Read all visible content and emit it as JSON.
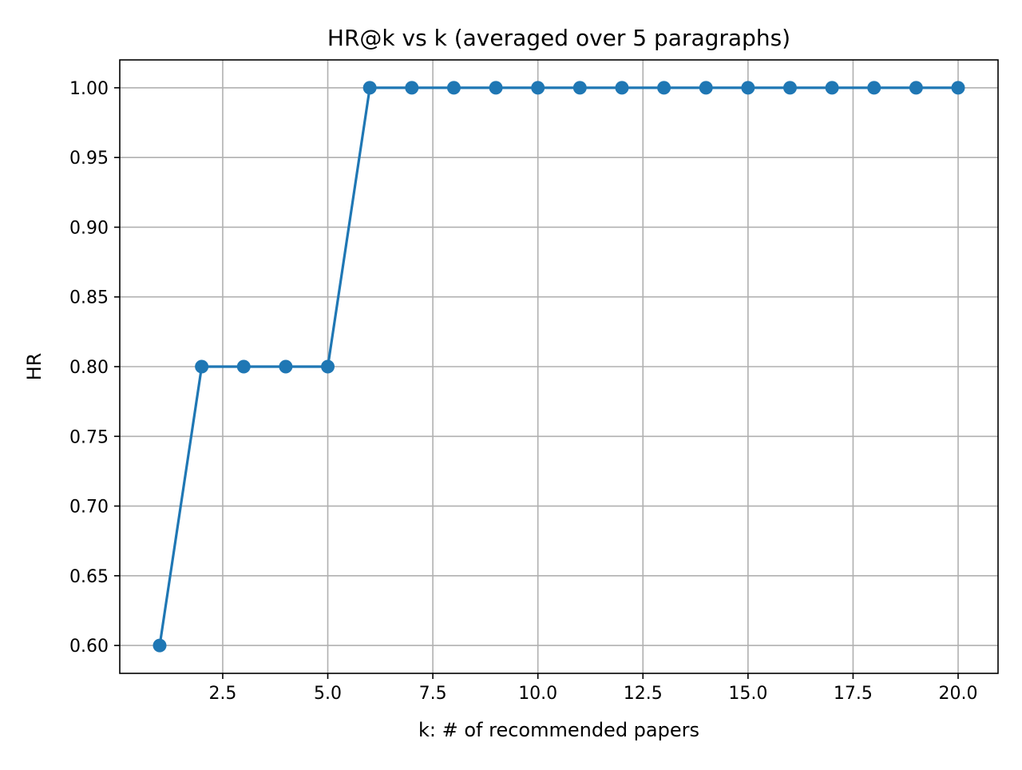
{
  "chart_data": {
    "type": "line",
    "title": "HR@k vs k  (averaged over 5 paragraphs)",
    "xlabel": "k: # of recommended papers",
    "ylabel": "HR",
    "xlim": [
      0.05,
      20.95
    ],
    "ylim": [
      0.58,
      1.02
    ],
    "xticks": [
      2.5,
      5.0,
      7.5,
      10.0,
      12.5,
      15.0,
      17.5,
      20.0
    ],
    "xtick_labels": [
      "2.5",
      "5.0",
      "7.5",
      "10.0",
      "12.5",
      "15.0",
      "17.5",
      "20.0"
    ],
    "yticks": [
      0.6,
      0.65,
      0.7,
      0.75,
      0.8,
      0.85,
      0.9,
      0.95,
      1.0
    ],
    "ytick_labels": [
      "0.60",
      "0.65",
      "0.70",
      "0.75",
      "0.80",
      "0.85",
      "0.90",
      "0.95",
      "1.00"
    ],
    "grid": true,
    "series": [
      {
        "color": "#1f77b4",
        "marker": "circle",
        "x": [
          1,
          2,
          3,
          4,
          5,
          6,
          7,
          8,
          9,
          10,
          11,
          12,
          13,
          14,
          15,
          16,
          17,
          18,
          19,
          20
        ],
        "y": [
          0.6,
          0.8,
          0.8,
          0.8,
          0.8,
          1.0,
          1.0,
          1.0,
          1.0,
          1.0,
          1.0,
          1.0,
          1.0,
          1.0,
          1.0,
          1.0,
          1.0,
          1.0,
          1.0,
          1.0
        ]
      }
    ]
  }
}
